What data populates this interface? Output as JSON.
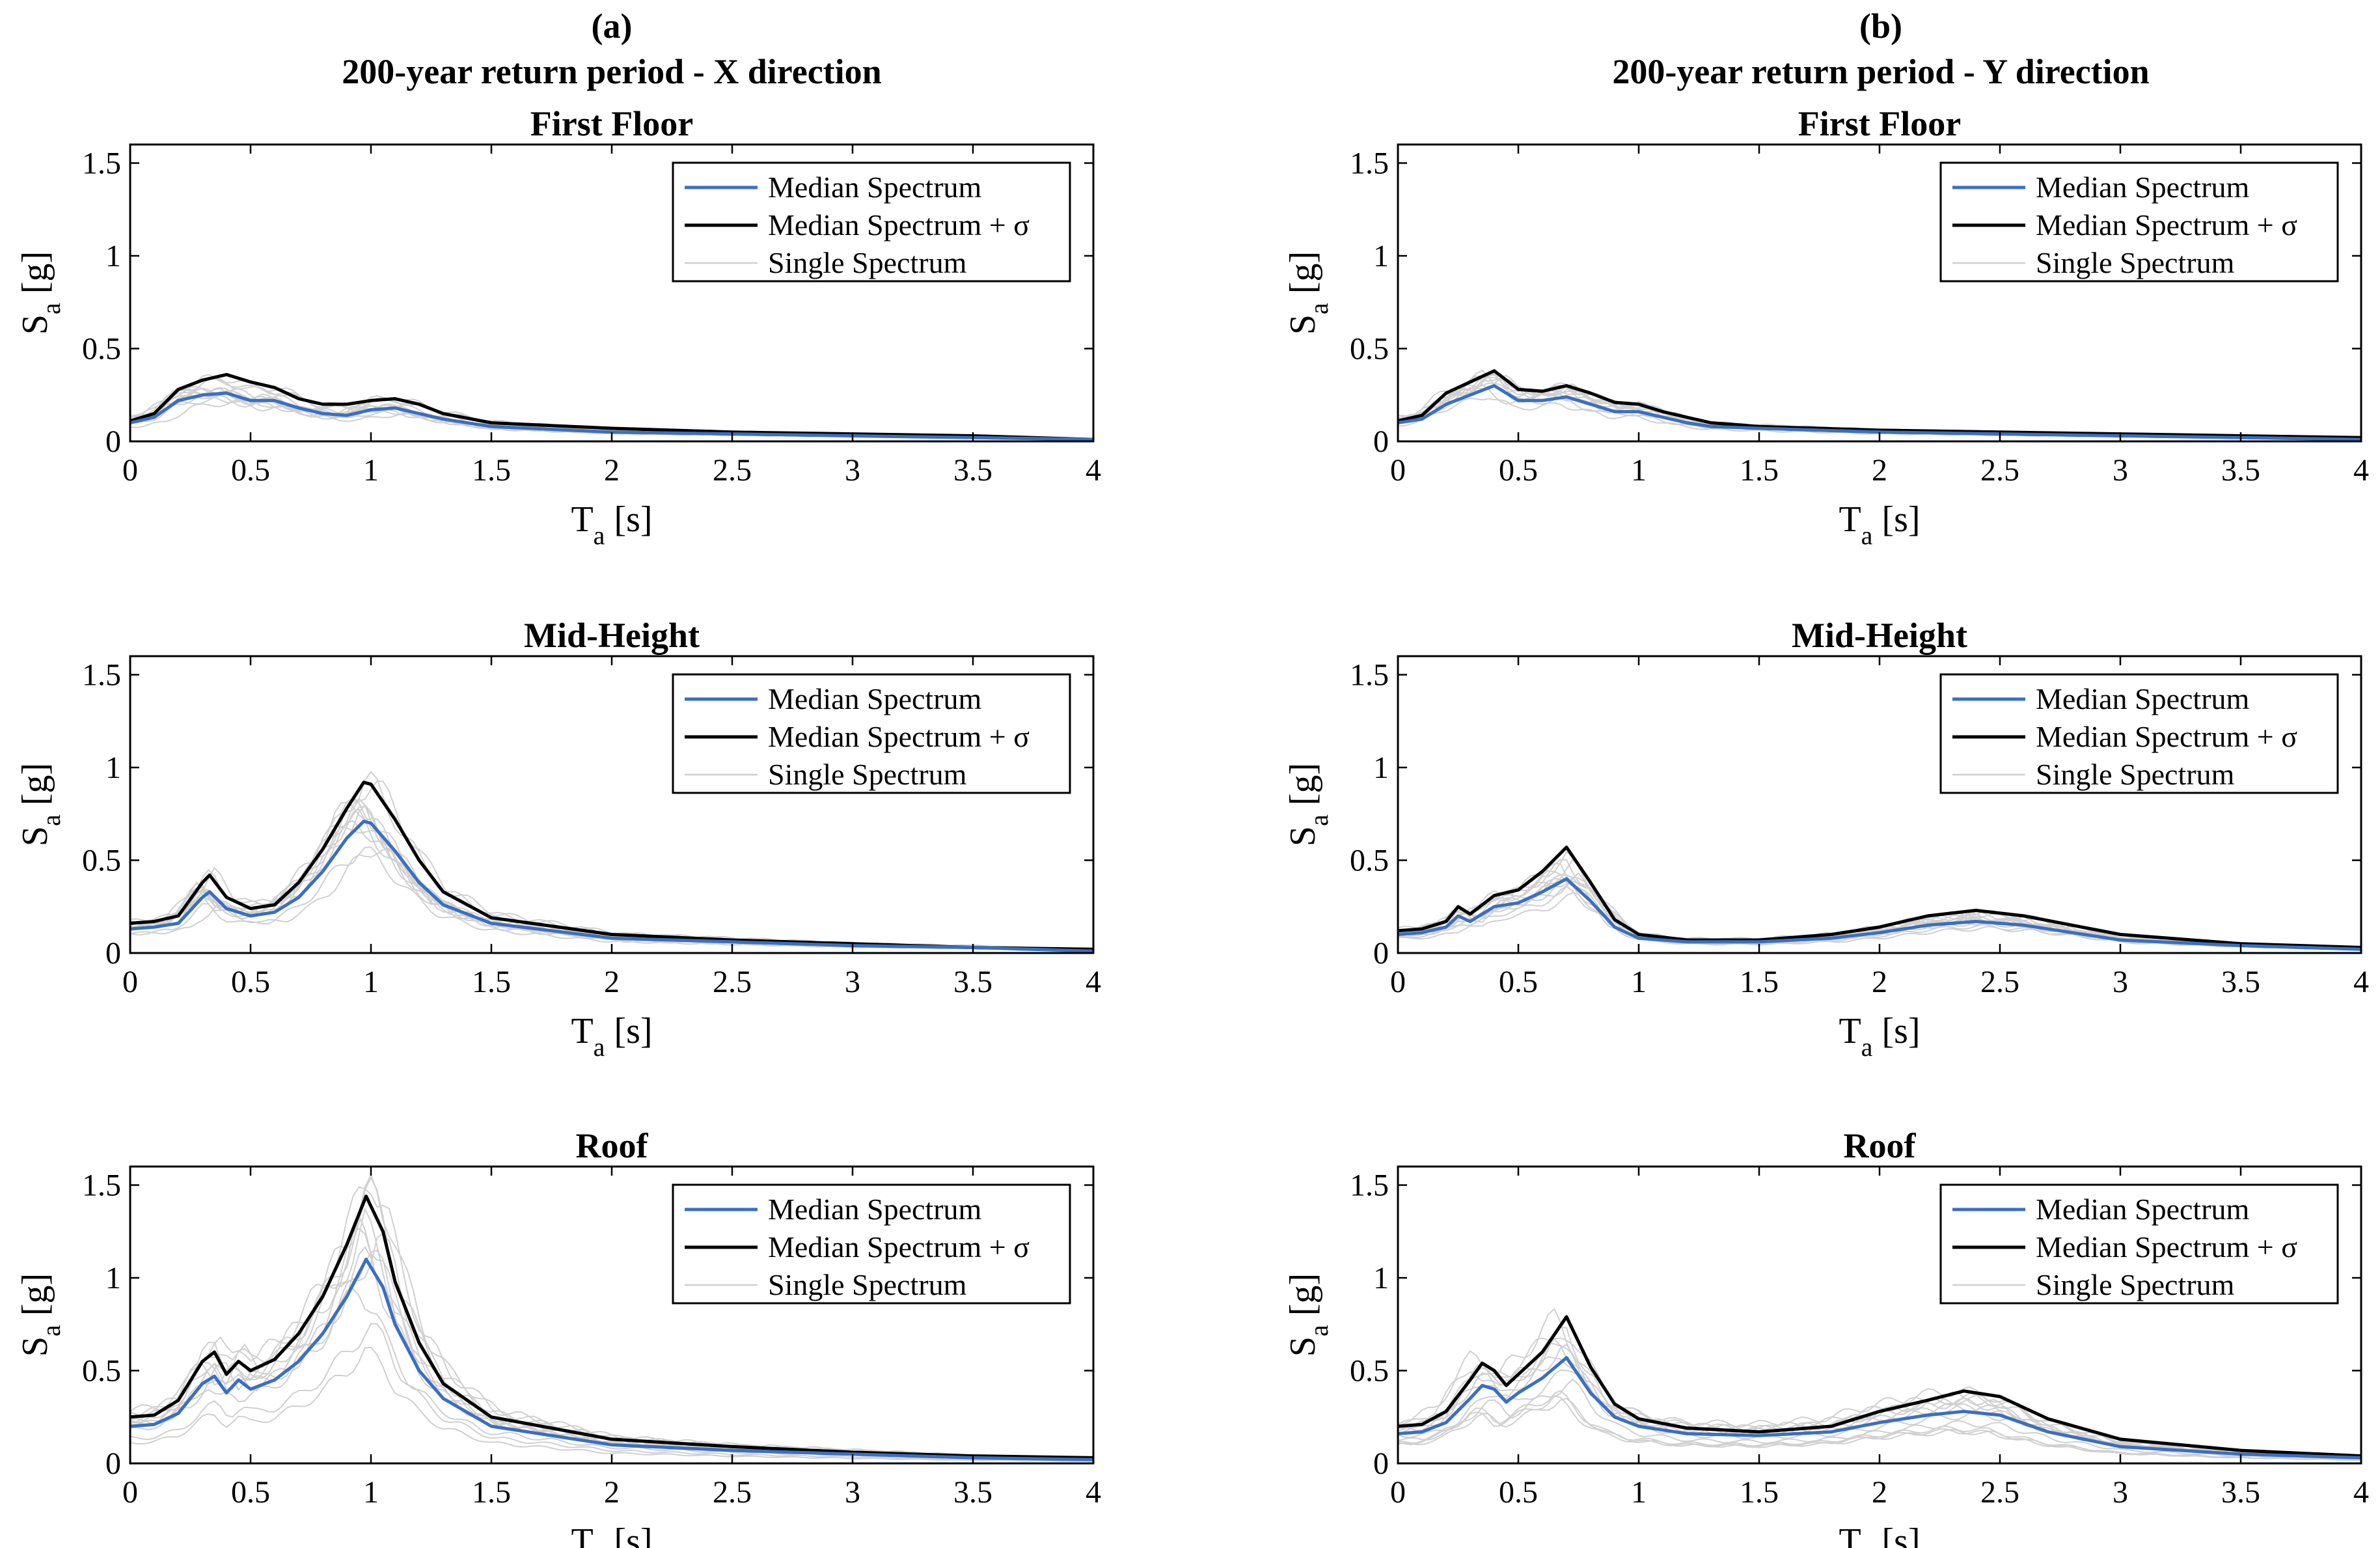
{
  "figure": {
    "panels": [
      {
        "label": "(a)",
        "title": "200-year return period - X direction"
      },
      {
        "label": "(b)",
        "title": "200-year return period - Y direction"
      }
    ]
  },
  "colors": {
    "median": "#3a6fc2",
    "median_plus_sigma": "#000000",
    "single": "#d0d0d0"
  },
  "chart_data": [
    {
      "type": "line",
      "panel": "(a)",
      "row": "First Floor",
      "title": "First Floor",
      "xlabel": "T",
      "xlabel_sub": "a",
      "xlabel_unit": "[s]",
      "ylabel": "S",
      "ylabel_sub": "a",
      "ylabel_unit": "[g]",
      "xlim": [
        0,
        4
      ],
      "ylim": [
        0,
        1.6
      ],
      "xticks": [
        0,
        0.5,
        1,
        1.5,
        2,
        2.5,
        3,
        3.5,
        4
      ],
      "yticks": [
        0,
        0.5,
        1,
        1.5
      ],
      "xtick_labels": [
        "0",
        "0.5",
        "1",
        "1.5",
        "2",
        "2.5",
        "3",
        "3.5",
        "4"
      ],
      "ytick_labels": [
        "0",
        "0.5",
        "1",
        "1.5"
      ],
      "legend": [
        "Median Spectrum",
        "Median Spectrum + σ",
        "Single Spectrum"
      ],
      "legend_position": "top-right",
      "series": [
        {
          "name": "Median Spectrum",
          "x": [
            0,
            0.1,
            0.2,
            0.3,
            0.4,
            0.5,
            0.6,
            0.7,
            0.8,
            0.9,
            1.0,
            1.1,
            1.2,
            1.3,
            1.5,
            2.0,
            2.5,
            3.0,
            3.5,
            4.0
          ],
          "values": [
            0.1,
            0.13,
            0.22,
            0.25,
            0.26,
            0.22,
            0.22,
            0.18,
            0.15,
            0.14,
            0.17,
            0.18,
            0.15,
            0.12,
            0.08,
            0.05,
            0.04,
            0.03,
            0.02,
            0.01
          ]
        },
        {
          "name": "Median Spectrum + σ",
          "x": [
            0,
            0.1,
            0.2,
            0.3,
            0.4,
            0.5,
            0.6,
            0.7,
            0.8,
            0.9,
            1.0,
            1.1,
            1.2,
            1.3,
            1.5,
            2.0,
            2.5,
            3.0,
            3.5,
            4.0
          ],
          "values": [
            0.11,
            0.15,
            0.28,
            0.33,
            0.36,
            0.32,
            0.29,
            0.23,
            0.2,
            0.2,
            0.22,
            0.23,
            0.2,
            0.15,
            0.1,
            0.07,
            0.05,
            0.04,
            0.03,
            0.01
          ]
        }
      ],
      "singles": {
        "count": 12,
        "spread": 0.35
      }
    },
    {
      "type": "line",
      "panel": "(a)",
      "row": "Mid-Height",
      "title": "Mid-Height",
      "xlabel": "T",
      "xlabel_sub": "a",
      "xlabel_unit": "[s]",
      "ylabel": "S",
      "ylabel_sub": "a",
      "ylabel_unit": "[g]",
      "xlim": [
        0,
        4
      ],
      "ylim": [
        0,
        1.6
      ],
      "xticks": [
        0,
        0.5,
        1,
        1.5,
        2,
        2.5,
        3,
        3.5,
        4
      ],
      "yticks": [
        0,
        0.5,
        1,
        1.5
      ],
      "xtick_labels": [
        "0",
        "0.5",
        "1",
        "1.5",
        "2",
        "2.5",
        "3",
        "3.5",
        "4"
      ],
      "ytick_labels": [
        "0",
        "0.5",
        "1",
        "1.5"
      ],
      "legend": [
        "Median Spectrum",
        "Median Spectrum + σ",
        "Single Spectrum"
      ],
      "legend_position": "top-right",
      "series": [
        {
          "name": "Median Spectrum",
          "x": [
            0,
            0.1,
            0.2,
            0.3,
            0.33,
            0.4,
            0.5,
            0.6,
            0.7,
            0.8,
            0.9,
            0.97,
            1.0,
            1.1,
            1.2,
            1.3,
            1.5,
            2.0,
            2.5,
            3.0,
            3.5,
            4.0
          ],
          "values": [
            0.13,
            0.14,
            0.16,
            0.3,
            0.33,
            0.24,
            0.2,
            0.22,
            0.3,
            0.44,
            0.62,
            0.71,
            0.7,
            0.55,
            0.38,
            0.26,
            0.16,
            0.08,
            0.06,
            0.04,
            0.03,
            0.01
          ]
        },
        {
          "name": "Median Spectrum + σ",
          "x": [
            0,
            0.1,
            0.2,
            0.3,
            0.33,
            0.4,
            0.5,
            0.6,
            0.7,
            0.8,
            0.9,
            0.97,
            1.0,
            1.1,
            1.2,
            1.3,
            1.5,
            2.0,
            2.5,
            3.0,
            3.5,
            4.0
          ],
          "values": [
            0.16,
            0.17,
            0.2,
            0.38,
            0.42,
            0.3,
            0.24,
            0.26,
            0.38,
            0.56,
            0.78,
            0.92,
            0.91,
            0.72,
            0.5,
            0.33,
            0.19,
            0.1,
            0.07,
            0.05,
            0.03,
            0.02
          ]
        }
      ],
      "singles": {
        "count": 12,
        "spread": 0.35
      }
    },
    {
      "type": "line",
      "panel": "(a)",
      "row": "Roof",
      "title": "Roof",
      "xlabel": "T",
      "xlabel_sub": "a",
      "xlabel_unit": "[s]",
      "ylabel": "S",
      "ylabel_sub": "a",
      "ylabel_unit": "[g]",
      "xlim": [
        0,
        4
      ],
      "ylim": [
        0,
        1.6
      ],
      "xticks": [
        0,
        0.5,
        1,
        1.5,
        2,
        2.5,
        3,
        3.5,
        4
      ],
      "yticks": [
        0,
        0.5,
        1,
        1.5
      ],
      "xtick_labels": [
        "0",
        "0.5",
        "1",
        "1.5",
        "2",
        "2.5",
        "3",
        "3.5",
        "4"
      ],
      "ytick_labels": [
        "0",
        "0.5",
        "1",
        "1.5"
      ],
      "legend": [
        "Median Spectrum",
        "Median Spectrum + σ",
        "Single Spectrum"
      ],
      "legend_position": "top-right",
      "series": [
        {
          "name": "Median Spectrum",
          "x": [
            0,
            0.1,
            0.2,
            0.3,
            0.35,
            0.4,
            0.45,
            0.5,
            0.6,
            0.7,
            0.8,
            0.9,
            0.98,
            1.05,
            1.1,
            1.2,
            1.3,
            1.5,
            2.0,
            2.5,
            3.0,
            3.5,
            4.0
          ],
          "values": [
            0.2,
            0.21,
            0.27,
            0.43,
            0.47,
            0.38,
            0.45,
            0.4,
            0.45,
            0.55,
            0.7,
            0.9,
            1.1,
            0.95,
            0.75,
            0.5,
            0.35,
            0.2,
            0.1,
            0.07,
            0.05,
            0.03,
            0.02
          ]
        },
        {
          "name": "Median Spectrum + σ",
          "x": [
            0,
            0.1,
            0.2,
            0.3,
            0.35,
            0.4,
            0.45,
            0.5,
            0.6,
            0.7,
            0.8,
            0.9,
            0.98,
            1.05,
            1.1,
            1.2,
            1.3,
            1.5,
            2.0,
            2.5,
            3.0,
            3.5,
            4.0
          ],
          "values": [
            0.25,
            0.26,
            0.34,
            0.55,
            0.6,
            0.48,
            0.55,
            0.5,
            0.56,
            0.7,
            0.9,
            1.18,
            1.44,
            1.25,
            0.98,
            0.65,
            0.43,
            0.25,
            0.13,
            0.09,
            0.06,
            0.04,
            0.03
          ]
        }
      ],
      "singles": {
        "count": 12,
        "spread": 0.45
      }
    },
    {
      "type": "line",
      "panel": "(b)",
      "row": "First Floor",
      "title": "First Floor",
      "xlabel": "T",
      "xlabel_sub": "a",
      "xlabel_unit": "[s]",
      "ylabel": "S",
      "ylabel_sub": "a",
      "ylabel_unit": "[g]",
      "xlim": [
        0,
        4
      ],
      "ylim": [
        0,
        1.6
      ],
      "xticks": [
        0,
        0.5,
        1,
        1.5,
        2,
        2.5,
        3,
        3.5,
        4
      ],
      "yticks": [
        0,
        0.5,
        1,
        1.5
      ],
      "xtick_labels": [
        "0",
        "0.5",
        "1",
        "1.5",
        "2",
        "2.5",
        "3",
        "3.5",
        "4"
      ],
      "ytick_labels": [
        "0",
        "0.5",
        "1",
        "1.5"
      ],
      "legend": [
        "Median Spectrum",
        "Median Spectrum + σ",
        "Single Spectrum"
      ],
      "legend_position": "top-right",
      "series": [
        {
          "name": "Median Spectrum",
          "x": [
            0,
            0.1,
            0.2,
            0.3,
            0.4,
            0.5,
            0.6,
            0.7,
            0.8,
            0.9,
            1.0,
            1.1,
            1.2,
            1.3,
            1.5,
            2.0,
            2.5,
            3.0,
            3.5,
            4.0
          ],
          "values": [
            0.1,
            0.12,
            0.2,
            0.25,
            0.3,
            0.22,
            0.22,
            0.24,
            0.2,
            0.16,
            0.16,
            0.13,
            0.1,
            0.08,
            0.07,
            0.05,
            0.04,
            0.03,
            0.02,
            0.01
          ]
        },
        {
          "name": "Median Spectrum + σ",
          "x": [
            0,
            0.1,
            0.2,
            0.3,
            0.4,
            0.5,
            0.6,
            0.7,
            0.8,
            0.9,
            1.0,
            1.1,
            1.2,
            1.3,
            1.5,
            2.0,
            2.5,
            3.0,
            3.5,
            4.0
          ],
          "values": [
            0.11,
            0.14,
            0.26,
            0.32,
            0.38,
            0.28,
            0.27,
            0.3,
            0.26,
            0.21,
            0.2,
            0.16,
            0.13,
            0.1,
            0.08,
            0.06,
            0.05,
            0.04,
            0.03,
            0.02
          ]
        }
      ],
      "singles": {
        "count": 12,
        "spread": 0.35
      }
    },
    {
      "type": "line",
      "panel": "(b)",
      "row": "Mid-Height",
      "title": "Mid-Height",
      "xlabel": "T",
      "xlabel_sub": "a",
      "xlabel_unit": "[s]",
      "ylabel": "S",
      "ylabel_sub": "a",
      "ylabel_unit": "[g]",
      "xlim": [
        0,
        4
      ],
      "ylim": [
        0,
        1.6
      ],
      "xticks": [
        0,
        0.5,
        1,
        1.5,
        2,
        2.5,
        3,
        3.5,
        4
      ],
      "yticks": [
        0,
        0.5,
        1,
        1.5
      ],
      "xtick_labels": [
        "0",
        "0.5",
        "1",
        "1.5",
        "2",
        "2.5",
        "3",
        "3.5",
        "4"
      ],
      "ytick_labels": [
        "0",
        "0.5",
        "1",
        "1.5"
      ],
      "legend": [
        "Median Spectrum",
        "Median Spectrum + σ",
        "Single Spectrum"
      ],
      "legend_position": "top-right",
      "series": [
        {
          "name": "Median Spectrum",
          "x": [
            0,
            0.1,
            0.2,
            0.25,
            0.3,
            0.4,
            0.5,
            0.6,
            0.7,
            0.8,
            0.9,
            1.0,
            1.2,
            1.5,
            1.8,
            2.0,
            2.2,
            2.4,
            2.6,
            2.8,
            3.0,
            3.5,
            4.0
          ],
          "values": [
            0.1,
            0.11,
            0.14,
            0.2,
            0.17,
            0.25,
            0.27,
            0.33,
            0.4,
            0.28,
            0.14,
            0.08,
            0.06,
            0.06,
            0.08,
            0.11,
            0.15,
            0.17,
            0.15,
            0.11,
            0.07,
            0.04,
            0.02
          ]
        },
        {
          "name": "Median Spectrum + σ",
          "x": [
            0,
            0.1,
            0.2,
            0.25,
            0.3,
            0.4,
            0.5,
            0.6,
            0.7,
            0.8,
            0.9,
            1.0,
            1.2,
            1.5,
            1.8,
            2.0,
            2.2,
            2.4,
            2.6,
            2.8,
            3.0,
            3.5,
            4.0
          ],
          "values": [
            0.12,
            0.13,
            0.17,
            0.25,
            0.21,
            0.31,
            0.34,
            0.44,
            0.57,
            0.38,
            0.18,
            0.1,
            0.07,
            0.07,
            0.1,
            0.14,
            0.2,
            0.23,
            0.2,
            0.15,
            0.1,
            0.05,
            0.03
          ]
        }
      ],
      "singles": {
        "count": 12,
        "spread": 0.35
      }
    },
    {
      "type": "line",
      "panel": "(b)",
      "row": "Roof",
      "title": "Roof",
      "xlabel": "T",
      "xlabel_sub": "a",
      "xlabel_unit": "[s]",
      "ylabel": "S",
      "ylabel_sub": "a",
      "ylabel_unit": "[g]",
      "xlim": [
        0,
        4
      ],
      "ylim": [
        0,
        1.6
      ],
      "xticks": [
        0,
        0.5,
        1,
        1.5,
        2,
        2.5,
        3,
        3.5,
        4
      ],
      "yticks": [
        0,
        0.5,
        1,
        1.5
      ],
      "xtick_labels": [
        "0",
        "0.5",
        "1",
        "1.5",
        "2",
        "2.5",
        "3",
        "3.5",
        "4"
      ],
      "ytick_labels": [
        "0",
        "0.5",
        "1",
        "1.5"
      ],
      "legend": [
        "Median Spectrum",
        "Median Spectrum + σ",
        "Single Spectrum"
      ],
      "legend_position": "top-right",
      "series": [
        {
          "name": "Median Spectrum",
          "x": [
            0,
            0.1,
            0.2,
            0.3,
            0.35,
            0.4,
            0.45,
            0.5,
            0.6,
            0.7,
            0.8,
            0.9,
            1.0,
            1.2,
            1.5,
            1.8,
            2.0,
            2.2,
            2.35,
            2.5,
            2.7,
            3.0,
            3.5,
            4.0
          ],
          "values": [
            0.16,
            0.17,
            0.22,
            0.35,
            0.42,
            0.4,
            0.33,
            0.38,
            0.46,
            0.57,
            0.38,
            0.25,
            0.2,
            0.16,
            0.15,
            0.17,
            0.22,
            0.26,
            0.28,
            0.26,
            0.17,
            0.09,
            0.05,
            0.03
          ]
        },
        {
          "name": "Median Spectrum + σ",
          "x": [
            0,
            0.1,
            0.2,
            0.3,
            0.35,
            0.4,
            0.45,
            0.5,
            0.6,
            0.7,
            0.8,
            0.9,
            1.0,
            1.2,
            1.5,
            1.8,
            2.0,
            2.2,
            2.35,
            2.5,
            2.7,
            3.0,
            3.5,
            4.0
          ],
          "values": [
            0.2,
            0.21,
            0.28,
            0.45,
            0.54,
            0.5,
            0.42,
            0.48,
            0.6,
            0.79,
            0.52,
            0.32,
            0.24,
            0.19,
            0.17,
            0.2,
            0.28,
            0.34,
            0.39,
            0.36,
            0.24,
            0.13,
            0.07,
            0.04
          ]
        }
      ],
      "singles": {
        "count": 12,
        "spread": 0.45
      }
    }
  ]
}
